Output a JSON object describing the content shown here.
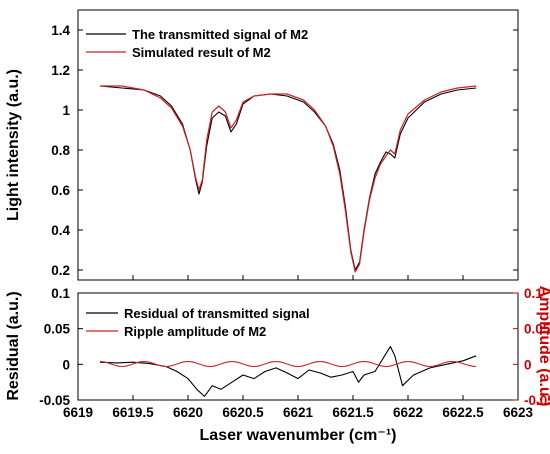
{
  "chart_data": [
    {
      "type": "line",
      "ylabel": "Light intensity (a.u.)",
      "xlim": [
        6619,
        6623
      ],
      "ylim": [
        0.15,
        1.5
      ],
      "yticks": [
        0.2,
        0.4,
        0.6,
        0.8,
        1,
        1.2,
        1.4
      ],
      "ytick_labels": [
        "0.2",
        "0.4",
        "0.6",
        "0.8",
        "1",
        "1.2",
        "1.4"
      ],
      "legend_position": "top-left",
      "series": [
        {
          "name": "The transmitted signal of M2",
          "color": "#000000",
          "x": [
            6619.2,
            6619.4,
            6619.6,
            6619.75,
            6619.85,
            6619.95,
            6620.02,
            6620.07,
            6620.1,
            6620.13,
            6620.17,
            6620.22,
            6620.28,
            6620.34,
            6620.39,
            6620.44,
            6620.5,
            6620.6,
            6620.75,
            6620.9,
            6621.05,
            6621.15,
            6621.25,
            6621.32,
            6621.38,
            6621.43,
            6621.48,
            6621.52,
            6621.56,
            6621.6,
            6621.65,
            6621.7,
            6621.75,
            6621.8,
            6621.84,
            6621.88,
            6621.93,
            6622.0,
            6622.15,
            6622.3,
            6622.45,
            6622.62
          ],
          "y": [
            1.12,
            1.11,
            1.1,
            1.07,
            1.02,
            0.93,
            0.8,
            0.65,
            0.58,
            0.64,
            0.82,
            0.96,
            0.99,
            0.97,
            0.89,
            0.93,
            1.03,
            1.07,
            1.08,
            1.07,
            1.04,
            0.99,
            0.92,
            0.83,
            0.7,
            0.52,
            0.3,
            0.2,
            0.24,
            0.4,
            0.56,
            0.68,
            0.74,
            0.79,
            0.78,
            0.76,
            0.88,
            0.96,
            1.04,
            1.08,
            1.1,
            1.11
          ]
        },
        {
          "name": "Simulated result of M2",
          "color": "#cc2222",
          "x": [
            6619.2,
            6619.4,
            6619.6,
            6619.75,
            6619.85,
            6619.95,
            6620.02,
            6620.07,
            6620.1,
            6620.13,
            6620.17,
            6620.22,
            6620.28,
            6620.34,
            6620.39,
            6620.44,
            6620.5,
            6620.6,
            6620.75,
            6620.9,
            6621.05,
            6621.15,
            6621.25,
            6621.32,
            6621.38,
            6621.43,
            6621.48,
            6621.52,
            6621.56,
            6621.6,
            6621.65,
            6621.7,
            6621.75,
            6621.8,
            6621.84,
            6621.88,
            6621.93,
            6622.0,
            6622.15,
            6622.3,
            6622.45,
            6622.62
          ],
          "y": [
            1.12,
            1.12,
            1.1,
            1.06,
            1.01,
            0.92,
            0.8,
            0.66,
            0.6,
            0.65,
            0.85,
            0.99,
            1.02,
            0.99,
            0.91,
            0.95,
            1.04,
            1.07,
            1.08,
            1.08,
            1.05,
            1.0,
            0.92,
            0.82,
            0.68,
            0.5,
            0.29,
            0.19,
            0.23,
            0.39,
            0.55,
            0.66,
            0.73,
            0.77,
            0.8,
            0.78,
            0.9,
            0.98,
            1.05,
            1.09,
            1.11,
            1.12
          ]
        }
      ]
    },
    {
      "type": "line",
      "xlabel": "Laser wavenumber (cm⁻¹)",
      "ylabel": "Residual (a.u.)",
      "y2label": "Amplitude (a.u.)",
      "xlim": [
        6619,
        6623
      ],
      "ylim": [
        -0.05,
        0.1
      ],
      "y2lim": [
        -0.05,
        0.1
      ],
      "xticks": [
        6619,
        6619.5,
        6620,
        6620.5,
        6621,
        6621.5,
        6622,
        6622.5,
        6623
      ],
      "xtick_labels": [
        "6619",
        "6619.5",
        "6620",
        "6620.5",
        "6621",
        "6621.5",
        "6622",
        "6622.5",
        "6623"
      ],
      "yticks": [
        -0.05,
        0,
        0.05,
        0.1
      ],
      "ytick_labels": [
        "-0.05",
        "0",
        "0.05",
        "0.1"
      ],
      "y2tick_labels": [
        "-0.05",
        "0",
        "0.05",
        "0.1"
      ],
      "legend_position": "top-left",
      "series": [
        {
          "name": "Residual of transmitted signal",
          "color": "#000000",
          "x": [
            6619.2,
            6619.35,
            6619.5,
            6619.65,
            6619.8,
            6619.9,
            6620.0,
            6620.08,
            6620.15,
            6620.22,
            6620.3,
            6620.4,
            6620.5,
            6620.6,
            6620.7,
            6620.8,
            6620.9,
            6621.0,
            6621.1,
            6621.2,
            6621.3,
            6621.4,
            6621.5,
            6621.55,
            6621.6,
            6621.7,
            6621.78,
            6621.84,
            6621.88,
            6621.95,
            6622.05,
            6622.2,
            6622.35,
            6622.5,
            6622.62
          ],
          "y": [
            0.003,
            0.002,
            0.003,
            0.001,
            -0.003,
            -0.01,
            -0.02,
            -0.035,
            -0.045,
            -0.03,
            -0.035,
            -0.025,
            -0.015,
            -0.02,
            -0.01,
            -0.005,
            -0.012,
            -0.02,
            -0.008,
            -0.012,
            -0.018,
            -0.015,
            -0.01,
            -0.025,
            -0.015,
            -0.01,
            0.01,
            0.025,
            0.012,
            -0.03,
            -0.015,
            -0.005,
            0.0,
            0.005,
            0.012
          ]
        },
        {
          "name": "Ripple amplitude of M2",
          "color": "#cc2222",
          "axis": "right",
          "x": [
            6619.2,
            6619.4,
            6619.6,
            6619.8,
            6620.0,
            6620.2,
            6620.4,
            6620.6,
            6620.8,
            6621.0,
            6621.2,
            6621.4,
            6621.6,
            6621.8,
            6622.0,
            6622.2,
            6622.4,
            6622.62
          ],
          "y": [
            0.004,
            -0.003,
            0.004,
            -0.003,
            0.004,
            -0.003,
            0.004,
            -0.003,
            0.004,
            -0.003,
            0.004,
            -0.003,
            0.004,
            -0.003,
            0.004,
            -0.003,
            0.004,
            -0.003
          ]
        }
      ]
    }
  ]
}
